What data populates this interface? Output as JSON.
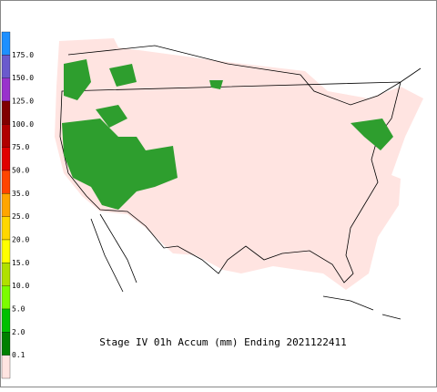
{
  "title": "Stage IV 01h Accum (mm) Ending 2021122411",
  "legend": {
    "labels": [
      "175.0",
      "150.0",
      "125.0",
      "100.0",
      "75.0",
      "50.0",
      "35.0",
      "25.0",
      "20.0",
      "15.0",
      "10.0",
      "5.0",
      "2.0",
      "0.1"
    ],
    "colors": [
      "#1e90ff",
      "#6a5acd",
      "#9932cc",
      "#800000",
      "#b00000",
      "#e00000",
      "#ff4500",
      "#ffa500",
      "#ffd700",
      "#ffff00",
      "#b0e000",
      "#7cfc00",
      "#00c000",
      "#008000",
      "#ffe4e1"
    ]
  }
}
